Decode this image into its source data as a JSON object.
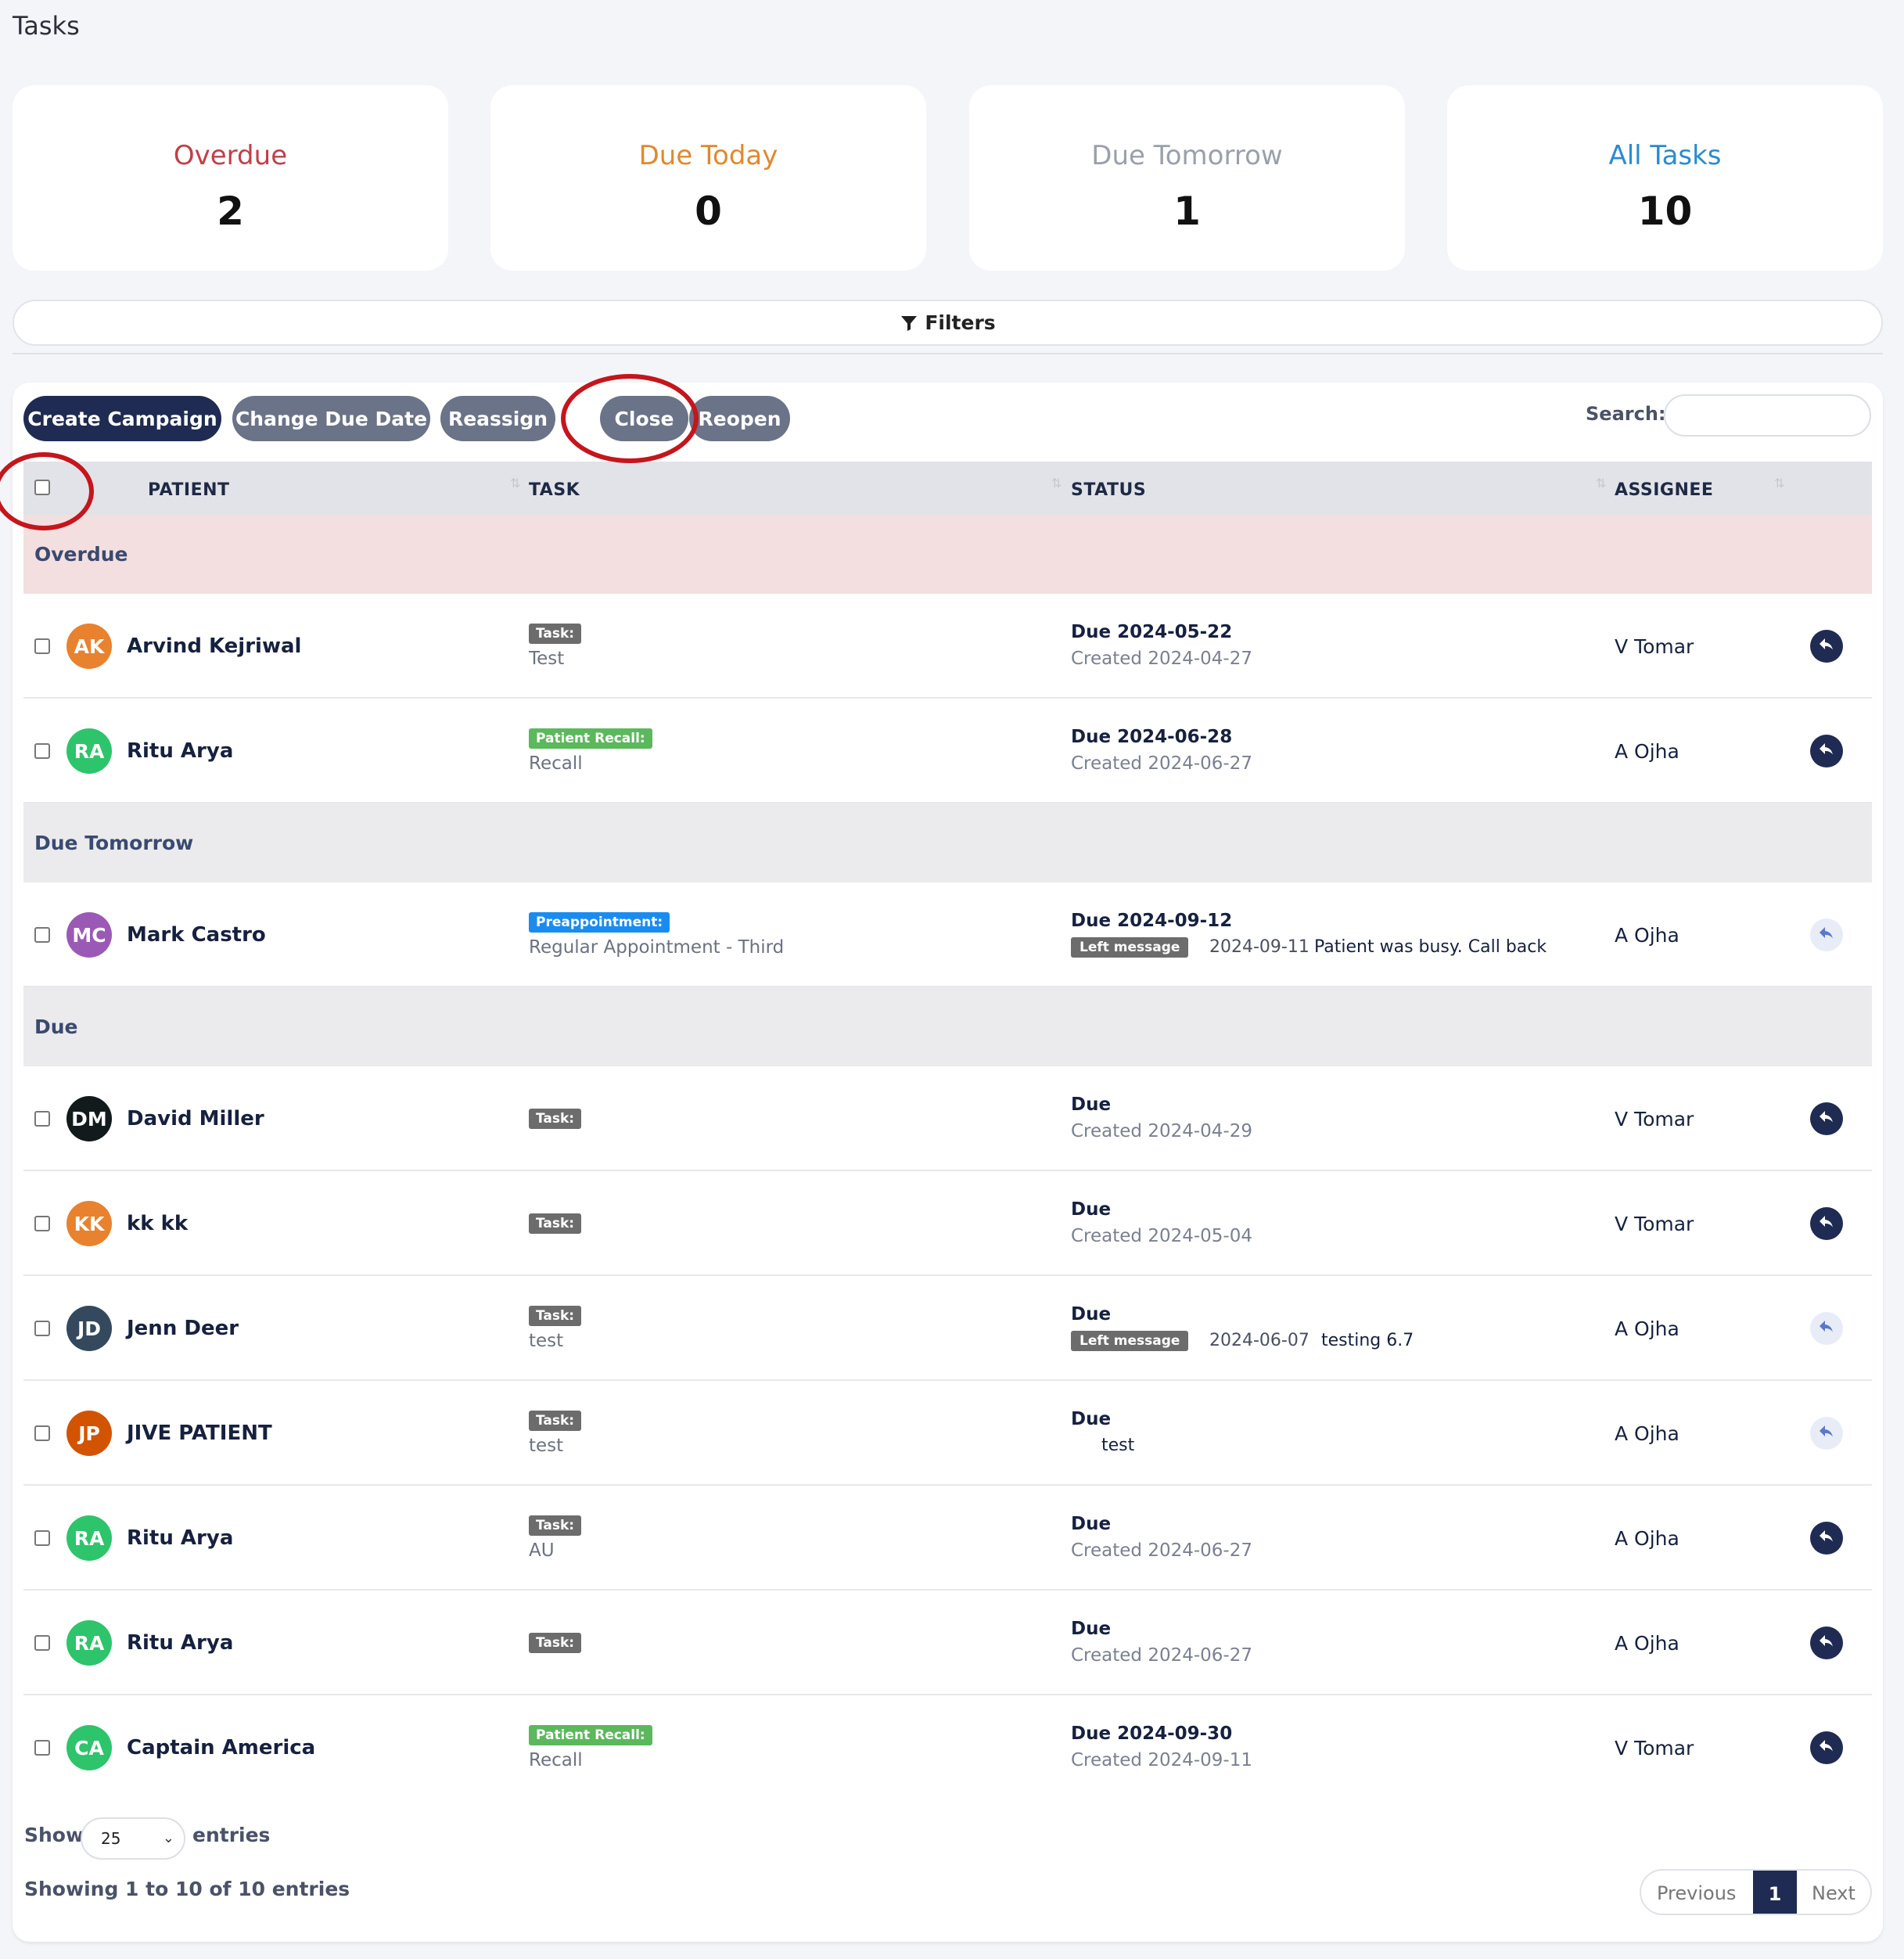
{
  "page": {
    "title": "Tasks"
  },
  "summary_cards": [
    {
      "label": "Overdue",
      "value": "2",
      "color": "#c0404a"
    },
    {
      "label": "Due Today",
      "value": "0",
      "color": "#e0892f"
    },
    {
      "label": "Due Tomorrow",
      "value": "1",
      "color": "#9aa0ab"
    },
    {
      "label": "All Tasks",
      "value": "10",
      "color": "#2a8bd0"
    }
  ],
  "filters": {
    "label": "Filters",
    "icon": "filter-icon"
  },
  "toolbar": {
    "create_campaign": "Create Campaign",
    "change_due_date": "Change Due Date",
    "reassign": "Reassign",
    "close": "Close",
    "reopen": "Reopen",
    "search_label": "Search:",
    "search_value": ""
  },
  "table": {
    "columns": [
      "PATIENT",
      "TASK",
      "STATUS",
      "ASSIGNEE"
    ],
    "groups": {
      "overdue": "Overdue",
      "due_tomorrow": "Due Tomorrow",
      "due": "Due"
    },
    "rows": [
      {
        "initials": "AK",
        "avatar_color": "#e8822e",
        "name": "Arvind Kejriwal",
        "task_type": "Task:",
        "task_type_color": "#6c6c6c",
        "task_desc": "Test",
        "due": "Due 2024-05-22",
        "created": "Created 2024-04-27",
        "assignee": "V Tomar",
        "action_icon": "reply-icon"
      },
      {
        "initials": "RA",
        "avatar_color": "#2ec46b",
        "name": "Ritu Arya",
        "task_type": "Patient Recall:",
        "task_type_color": "#5cb85c",
        "task_desc": "Recall",
        "due": "Due 2024-06-28",
        "created": "Created 2024-06-27",
        "assignee": "A Ojha",
        "action_icon": "reply-icon"
      },
      {
        "initials": "MC",
        "avatar_color": "#9b59b6",
        "name": "Mark Castro",
        "task_type": "Preappointment:",
        "task_type_color": "#1a8cf0",
        "task_desc": "Regular Appointment - Third",
        "due": "Due 2024-09-12",
        "note_badge": "Left message",
        "note_date": "2024-09-11",
        "note_text": "Patient was busy. Call back",
        "assignee": "A Ojha",
        "action_icon": "reply-icon"
      },
      {
        "initials": "DM",
        "avatar_color": "#121a1c",
        "name": "David Miller",
        "task_type": "Task:",
        "task_type_color": "#6c6c6c",
        "task_desc": "",
        "due": "Due",
        "created": "Created 2024-04-29",
        "assignee": "V Tomar",
        "action_icon": "reply-icon"
      },
      {
        "initials": "KK",
        "avatar_color": "#e8822e",
        "name": "kk kk",
        "task_type": "Task:",
        "task_type_color": "#6c6c6c",
        "task_desc": "",
        "due": "Due",
        "created": "Created 2024-05-04",
        "assignee": "V Tomar",
        "action_icon": "reply-icon"
      },
      {
        "initials": "JD",
        "avatar_color": "#34495e",
        "name": "Jenn Deer",
        "task_type": "Task:",
        "task_type_color": "#6c6c6c",
        "task_desc": "test",
        "due": "Due",
        "note_badge": "Left message",
        "note_date": "2024-06-07",
        "note_text": "testing 6.7",
        "assignee": "A Ojha",
        "action_icon": "reply-icon"
      },
      {
        "initials": "JP",
        "avatar_color": "#d35400",
        "name": "JIVE PATIENT",
        "task_type": "Task:",
        "task_type_color": "#6c6c6c",
        "task_desc": "test",
        "due": "Due",
        "note_text": "test",
        "assignee": "A Ojha",
        "action_icon": "reply-icon"
      },
      {
        "initials": "RA",
        "avatar_color": "#2ec46b",
        "name": "Ritu Arya",
        "task_type": "Task:",
        "task_type_color": "#6c6c6c",
        "task_desc": "AU",
        "due": "Due",
        "created": "Created 2024-06-27",
        "assignee": "A Ojha",
        "action_icon": "reply-icon"
      },
      {
        "initials": "RA",
        "avatar_color": "#2ec46b",
        "name": "Ritu Arya",
        "task_type": "Task:",
        "task_type_color": "#6c6c6c",
        "task_desc": "",
        "due": "Due",
        "created": "Created 2024-06-27",
        "assignee": "A Ojha",
        "action_icon": "reply-icon"
      },
      {
        "initials": "CA",
        "avatar_color": "#2ec46b",
        "name": "Captain America",
        "task_type": "Patient Recall:",
        "task_type_color": "#5cb85c",
        "task_desc": "Recall",
        "due": "Due 2024-09-30",
        "created": "Created 2024-09-11",
        "assignee": "V Tomar",
        "action_icon": "reply-icon"
      }
    ]
  },
  "footer": {
    "show_label": "Show",
    "entries_value": "25",
    "entries_label": "entries",
    "showing_text": "Showing 1 to 10 of 10 entries",
    "prev_label": "Previous",
    "current_page": "1",
    "next_label": "Next"
  }
}
